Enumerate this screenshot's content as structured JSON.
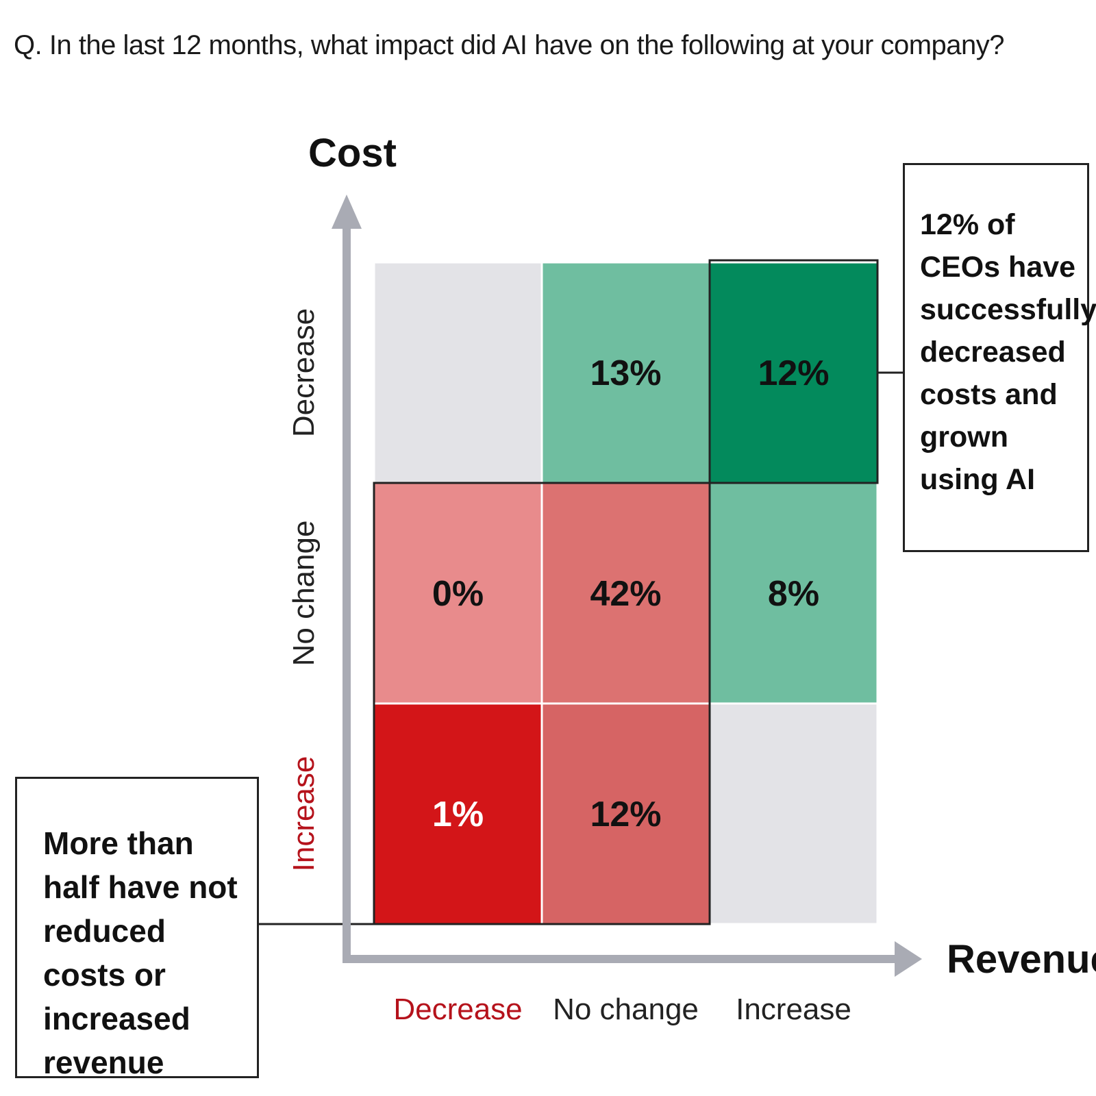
{
  "question": "Q. In the last 12 months, what impact did AI have on the following at your company?",
  "chart_data": {
    "type": "heatmap",
    "title": "",
    "xlabel": "Revenue",
    "ylabel": "Cost",
    "x_categories": [
      "Decrease",
      "No change",
      "Increase"
    ],
    "y_categories": [
      "Decrease",
      "No change",
      "Increase"
    ],
    "x_category_colors": [
      "#b5121b",
      "#222222",
      "#222222"
    ],
    "y_category_colors": [
      "#222222",
      "#222222",
      "#b5121b"
    ],
    "cells": [
      {
        "cost": "Decrease",
        "revenue": "Decrease",
        "value": null,
        "label": "",
        "color": "#e3e3e7"
      },
      {
        "cost": "Decrease",
        "revenue": "No change",
        "value": 13,
        "label": "13%",
        "color": "#6fbea0"
      },
      {
        "cost": "Decrease",
        "revenue": "Increase",
        "value": 12,
        "label": "12%",
        "color": "#038a5c"
      },
      {
        "cost": "No change",
        "revenue": "Decrease",
        "value": 0,
        "label": "0%",
        "color": "#e88b8c"
      },
      {
        "cost": "No change",
        "revenue": "No change",
        "value": 42,
        "label": "42%",
        "color": "#dc7271"
      },
      {
        "cost": "No change",
        "revenue": "Increase",
        "value": 8,
        "label": "8%",
        "color": "#6fbea0"
      },
      {
        "cost": "Increase",
        "revenue": "Decrease",
        "value": 1,
        "label": "1%",
        "color": "#d31518"
      },
      {
        "cost": "Increase",
        "revenue": "No change",
        "value": 12,
        "label": "12%",
        "color": "#d66464"
      },
      {
        "cost": "Increase",
        "revenue": "Increase",
        "value": null,
        "label": "",
        "color": "#e3e3e7"
      }
    ],
    "annotations": [
      "12% of CEOs have successfully decreased costs and grown using AI",
      "More than half have not reduced costs or increased revenue"
    ]
  },
  "callouts": {
    "right": "12% of CEOs have successfully decreased costs and grown using AI",
    "left": "More than half have not reduced costs or increased revenue"
  }
}
